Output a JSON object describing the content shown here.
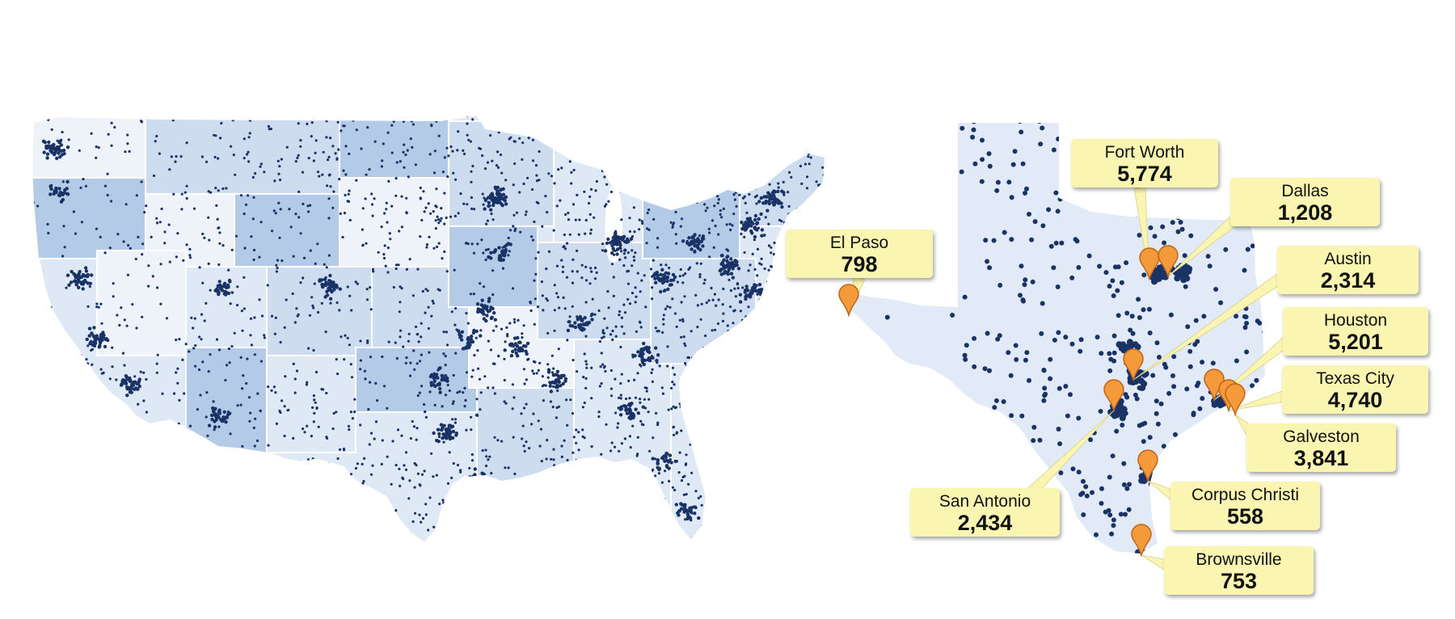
{
  "colors": {
    "dot": "#1a3366",
    "us_state_shades": [
      "#eef3fa",
      "#dfe8f5",
      "#cddcef",
      "#b4cbe7"
    ],
    "texas_fill": "#e1eaf6",
    "callout_fill": "#faf5b0",
    "pin_fill": "#f59a3a",
    "pin_stroke": "#c0651a",
    "leader_line": "#faf5b0"
  },
  "icons": {
    "pin": "map-pin-icon"
  },
  "callouts": [
    {
      "id": "el-paso",
      "name": "El Paso",
      "value": "798"
    },
    {
      "id": "fort-worth",
      "name": "Fort Worth",
      "value": "5,774"
    },
    {
      "id": "dallas",
      "name": "Dallas",
      "value": "1,208"
    },
    {
      "id": "austin",
      "name": "Austin",
      "value": "2,314"
    },
    {
      "id": "houston",
      "name": "Houston",
      "value": "5,201"
    },
    {
      "id": "texas-city",
      "name": "Texas City",
      "value": "4,740"
    },
    {
      "id": "galveston",
      "name": "Galveston",
      "value": "3,841"
    },
    {
      "id": "corpus-christi",
      "name": "Corpus Christi",
      "value": "558"
    },
    {
      "id": "san-antonio",
      "name": "San Antonio",
      "value": "2,434"
    },
    {
      "id": "brownsville",
      "name": "Brownsville",
      "value": "753"
    }
  ]
}
